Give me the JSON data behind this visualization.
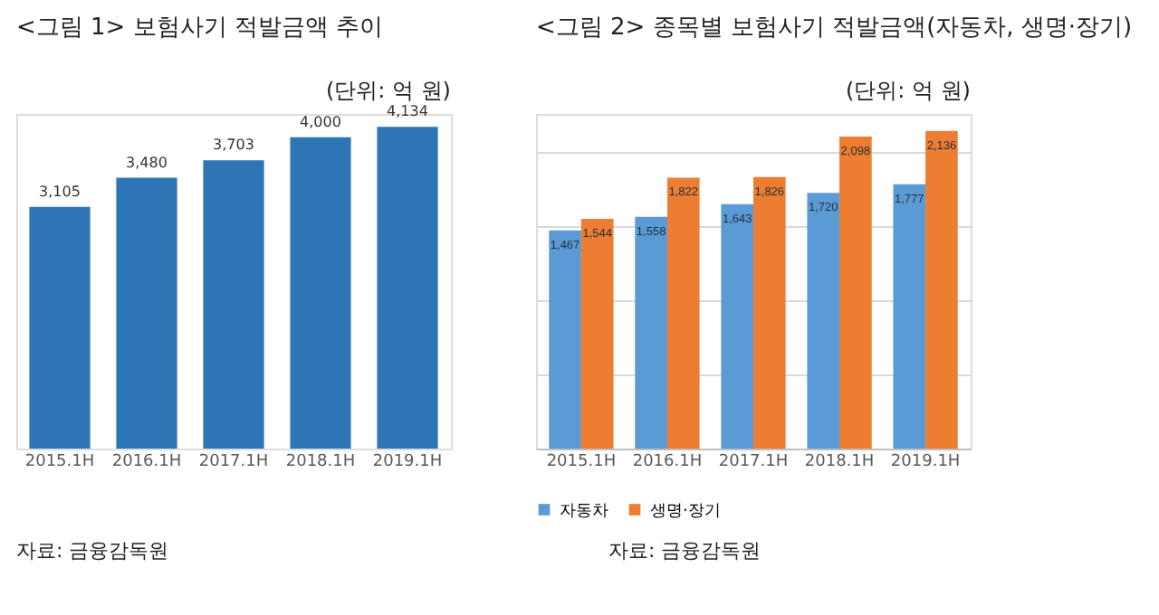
{
  "chart_data": [
    {
      "type": "bar",
      "title": "<그림 1> 보험사기 적발금액 추이",
      "subtitle": "(단위: 억 원)",
      "categories": [
        "2015.1H",
        "2016.1H",
        "2017.1H",
        "2018.1H",
        "2019.1H"
      ],
      "values": [
        3105,
        3480,
        3703,
        4000,
        4134
      ],
      "color": "#2e75b6",
      "ylim": [
        0,
        4300
      ],
      "tick_labels": "x",
      "grid": false,
      "legend": false,
      "data_labels": true,
      "value_labels": [
        "3,105",
        "3,480",
        "3,703",
        "4,000",
        "4,134"
      ],
      "annotations": [
        "자료: 금융감독원"
      ]
    },
    {
      "type": "bar",
      "title": "<그림 2> 종목별 보험사기 적발금액(자동차, 생명·장기)",
      "subtitle": "(단위: 억 원)",
      "categories": [
        "2015.1H",
        "2016.1H",
        "2017.1H",
        "2018.1H",
        "2019.1H"
      ],
      "series": [
        {
          "name": "자동차",
          "color": "#5b9bd5",
          "values": [
            1467,
            1558,
            1643,
            1720,
            1777
          ],
          "value_labels": [
            "1,467",
            "1,558",
            "1,643",
            "1,720",
            "1,777"
          ]
        },
        {
          "name": "생명·장기",
          "color": "#ed7d31",
          "values": [
            1544,
            1822,
            1826,
            2098,
            2136
          ],
          "value_labels": [
            "1,544",
            "1,822",
            "1,826",
            "2,098",
            "2,136"
          ]
        }
      ],
      "ylim": [
        0,
        2250
      ],
      "yticks": [
        {
          "value": 0,
          "label": null
        },
        {
          "value": 500,
          "label": null
        },
        {
          "value": 1000,
          "label": null
        },
        {
          "value": 1500,
          "label": null
        },
        {
          "value": 2000,
          "label": null
        }
      ],
      "tick_labels": "x",
      "grid": "y",
      "legend": "bottom",
      "data_labels": true,
      "annotations": [
        "자료: 금융감독원"
      ]
    }
  ]
}
